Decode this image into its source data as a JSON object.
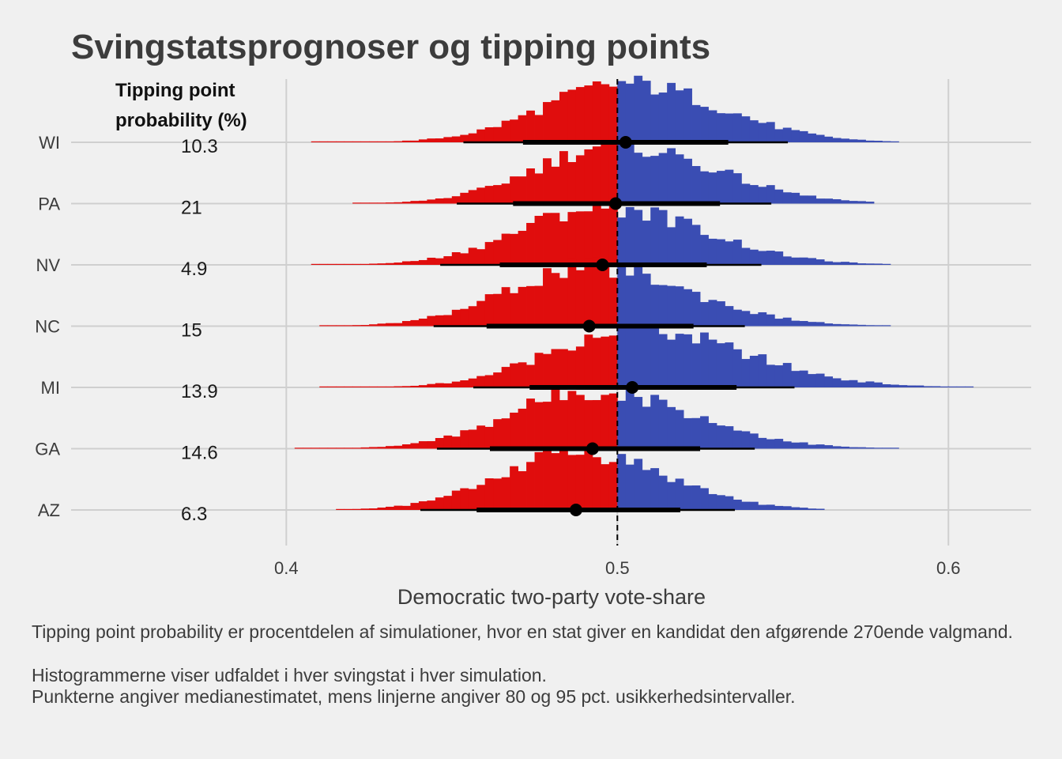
{
  "chart_data": {
    "type": "histogram-ridgeline",
    "title": "Svingstatsprognoser og tipping points",
    "xlabel": "Democratic two-party vote-share",
    "xlim": [
      0.335,
      0.625
    ],
    "x_ticks": [
      0.4,
      0.5,
      0.6
    ],
    "x_tick_labels": [
      "0.4",
      "0.5",
      "0.6"
    ],
    "threshold": 0.5,
    "bin_width": 0.0025,
    "table_header": [
      "Tipping point",
      "probability (%)"
    ],
    "states": [
      {
        "name": "WI",
        "tipping_point": "10.3",
        "median": 0.5025,
        "ci80": [
          0.4715,
          0.5335
        ],
        "ci95": [
          0.4535,
          0.5515
        ],
        "mean": 0.5025,
        "sd": 0.0245,
        "skew": 0.15,
        "range": [
          0.408,
          0.583
        ]
      },
      {
        "name": "PA",
        "tipping_point": "21",
        "median": 0.4995,
        "ci80": [
          0.4685,
          0.531
        ],
        "ci95": [
          0.4515,
          0.5465
        ],
        "mean": 0.4995,
        "sd": 0.024,
        "skew": 0.2,
        "range": [
          0.42,
          0.575
        ]
      },
      {
        "name": "NV",
        "tipping_point": "4.9",
        "median": 0.4955,
        "ci80": [
          0.4645,
          0.527
        ],
        "ci95": [
          0.4465,
          0.5435
        ],
        "mean": 0.4955,
        "sd": 0.0245,
        "skew": 0.2,
        "range": [
          0.409,
          0.58
        ]
      },
      {
        "name": "NC",
        "tipping_point": "15",
        "median": 0.4915,
        "ci80": [
          0.4605,
          0.523
        ],
        "ci95": [
          0.4445,
          0.5385
        ],
        "mean": 0.4915,
        "sd": 0.0245,
        "skew": 0.2,
        "range": [
          0.412,
          0.58
        ]
      },
      {
        "name": "MI",
        "tipping_point": "13.9",
        "median": 0.5045,
        "ci80": [
          0.4735,
          0.536
        ],
        "ci95": [
          0.4565,
          0.5535
        ],
        "mean": 0.5045,
        "sd": 0.025,
        "skew": 0.3,
        "range": [
          0.412,
          0.605
        ]
      },
      {
        "name": "GA",
        "tipping_point": "14.6",
        "median": 0.4925,
        "ci80": [
          0.4615,
          0.525
        ],
        "ci95": [
          0.4455,
          0.5415
        ],
        "mean": 0.4925,
        "sd": 0.0245,
        "skew": 0.2,
        "range": [
          0.403,
          0.583
        ]
      },
      {
        "name": "AZ",
        "tipping_point": "6.3",
        "median": 0.4875,
        "ci80": [
          0.4575,
          0.519
        ],
        "ci95": [
          0.4405,
          0.5355
        ],
        "mean": 0.4875,
        "sd": 0.023,
        "skew": 0.15,
        "range": [
          0.415,
          0.562
        ]
      }
    ],
    "colors": {
      "republican": "#e00d0d",
      "democrat": "#3a4db3",
      "grid": "#cfcfcf",
      "background": "#f0f0f0",
      "marks": "#000000"
    }
  },
  "caption": {
    "line1": "Tipping point probability er procentdelen af simulationer, hvor en stat giver en kandidat den afgørende 270ende valgmand.",
    "line2": "Histogrammerne viser udfaldet i hver svingstat i hver simulation.",
    "line3": "Punkterne angiver medianestimatet, mens linjerne angiver 80 og 95 pct. usikkerhedsintervaller."
  }
}
